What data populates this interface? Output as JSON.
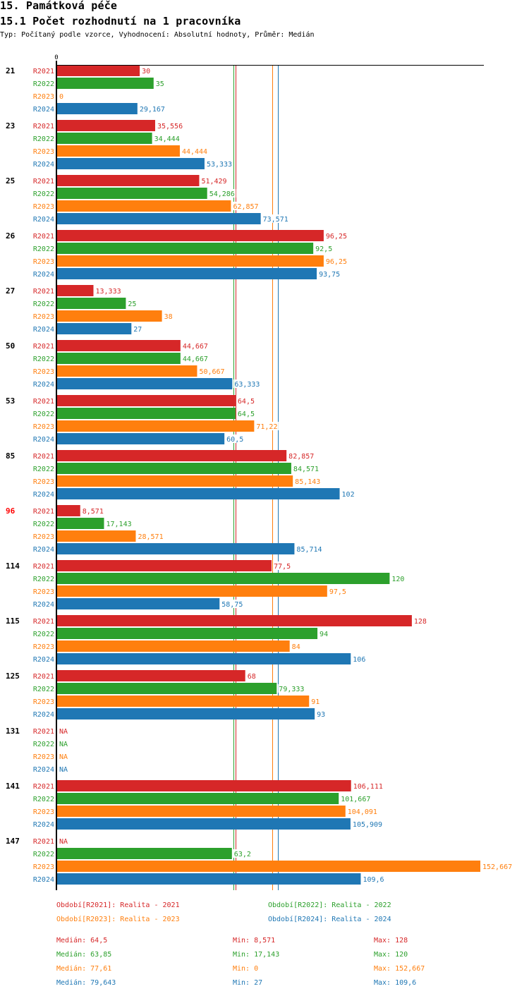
{
  "header": {
    "title": "15. Památková péče",
    "subtitle": "15.1 Počet rozhodnutí na 1 pracovníka",
    "description": "Typ: Počítaný podle vzorce, Vyhodnocení: Absolutní hodnoty, Průměr: Medián"
  },
  "chart_data": {
    "type": "bar",
    "orientation": "horizontal",
    "title": "15.1 Počet rozhodnutí na 1 pracovníka",
    "xlabel": "",
    "ylabel": "",
    "x_tick_labels": [
      "0"
    ],
    "xlim": [
      0,
      152.667
    ],
    "grid": false,
    "legend_position": "bottom",
    "categories": [
      "21",
      "23",
      "25",
      "26",
      "27",
      "50",
      "53",
      "85",
      "96",
      "114",
      "115",
      "125",
      "131",
      "141",
      "147"
    ],
    "highlighted_category": "96",
    "series": [
      {
        "name": "R2021",
        "color": "#d62728",
        "values": [
          30,
          35.556,
          51.429,
          96.25,
          13.333,
          44.667,
          64.5,
          82.857,
          8.571,
          77.5,
          128,
          68,
          null,
          106.111,
          null
        ],
        "labels": [
          "30",
          "35,556",
          "51,429",
          "96,25",
          "13,333",
          "44,667",
          "64,5",
          "82,857",
          "8,571",
          "77,5",
          "128",
          "68",
          "NA",
          "106,111",
          "NA"
        ]
      },
      {
        "name": "R2022",
        "color": "#2ca02c",
        "values": [
          35,
          34.444,
          54.286,
          92.5,
          25,
          44.667,
          64.5,
          84.571,
          17.143,
          120,
          94,
          79.333,
          null,
          101.667,
          63.2
        ],
        "labels": [
          "35",
          "34,444",
          "54,286",
          "92,5",
          "25",
          "44,667",
          "64,5",
          "84,571",
          "17,143",
          "120",
          "94",
          "79,333",
          "NA",
          "101,667",
          "63,2"
        ]
      },
      {
        "name": "R2023",
        "color": "#ff7f0e",
        "values": [
          0,
          44.444,
          62.857,
          96.25,
          38,
          50.667,
          71.22,
          85.143,
          28.571,
          97.5,
          84,
          91,
          null,
          104.091,
          152.667
        ],
        "labels": [
          "0",
          "44,444",
          "62,857",
          "96,25",
          "38",
          "50,667",
          "71,22",
          "85,143",
          "28,571",
          "97,5",
          "84",
          "91",
          "NA",
          "104,091",
          "152,667"
        ]
      },
      {
        "name": "R2024",
        "color": "#1f77b4",
        "values": [
          29.167,
          53.333,
          73.571,
          93.75,
          27,
          63.333,
          60.5,
          102,
          85.714,
          58.75,
          106,
          93,
          null,
          105.909,
          109.6
        ],
        "labels": [
          "29,167",
          "53,333",
          "73,571",
          "93,75",
          "27",
          "63,333",
          "60,5",
          "102",
          "85,714",
          "58,75",
          "106",
          "93",
          "NA",
          "105,909",
          "109,6"
        ]
      }
    ],
    "medians": [
      64.5,
      63.85,
      77.61,
      79.643
    ],
    "legend": [
      {
        "text": "Období[R2021]: Realita - 2021",
        "color": "#d62728"
      },
      {
        "text": "Období[R2022]: Realita - 2022",
        "color": "#2ca02c"
      },
      {
        "text": "Období[R2023]: Realita - 2023",
        "color": "#ff7f0e"
      },
      {
        "text": "Období[R2024]: Realita - 2024",
        "color": "#1f77b4"
      }
    ],
    "stats": [
      {
        "median": "Medián: 64,5",
        "min": "Min: 8,571",
        "max": "Max: 128",
        "color": "#d62728"
      },
      {
        "median": "Medián: 63,85",
        "min": "Min: 17,143",
        "max": "Max: 120",
        "color": "#2ca02c"
      },
      {
        "median": "Medián: 77,61",
        "min": "Min: 0",
        "max": "Max: 152,667",
        "color": "#ff7f0e"
      },
      {
        "median": "Medián: 79,643",
        "min": "Min: 27",
        "max": "Max: 109,6",
        "color": "#1f77b4"
      }
    ]
  }
}
